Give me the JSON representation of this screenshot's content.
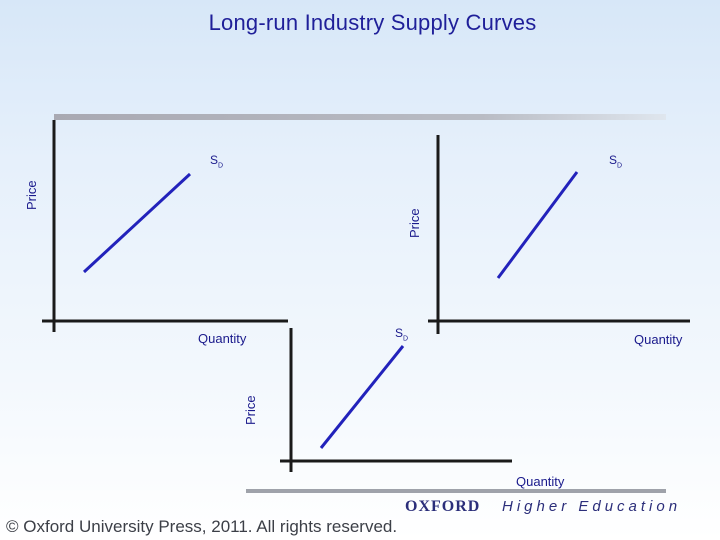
{
  "title": "Long-run Industry Supply Curves",
  "panels": [
    {
      "id": "left",
      "ylabel": "Price",
      "xlabel": "Quantity",
      "curve_label": "S",
      "curve_sub": "D"
    },
    {
      "id": "right",
      "ylabel": "Price",
      "xlabel": "Quantity",
      "curve_label": "S",
      "curve_sub": "D"
    },
    {
      "id": "bottom",
      "ylabel": "Price",
      "xlabel": "Quantity",
      "curve_label": "S",
      "curve_sub": "D"
    }
  ],
  "colors": {
    "title": "#1f1f99",
    "curve": "#2222bb",
    "axis": "#1a1a1a"
  },
  "footer": {
    "copyright": "© Oxford University Press, 2011. All rights reserved.",
    "logo_oxford": "OXFORD",
    "logo_he": "Higher Education"
  }
}
